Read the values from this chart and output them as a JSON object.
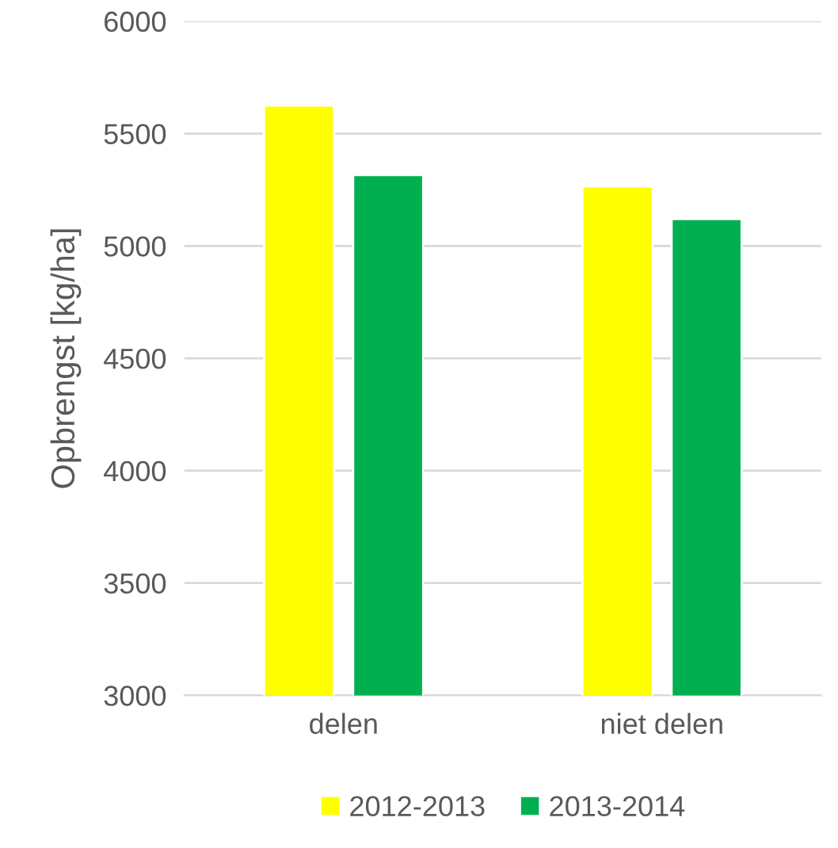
{
  "chart_data": {
    "type": "bar",
    "ylabel": "Opbrengst [kg/ha]",
    "categories": [
      "delen",
      "niet delen"
    ],
    "series": [
      {
        "name": "2012-2013",
        "color": "#ffff00",
        "values": [
          5625,
          5265
        ]
      },
      {
        "name": "2013-2014",
        "color": "#00b050",
        "values": [
          5315,
          5120
        ]
      }
    ],
    "ylim": [
      3000,
      6000
    ],
    "yticks": [
      3000,
      3500,
      4000,
      4500,
      5000,
      5500,
      6000
    ],
    "grid": "y",
    "legend": "bottom"
  }
}
